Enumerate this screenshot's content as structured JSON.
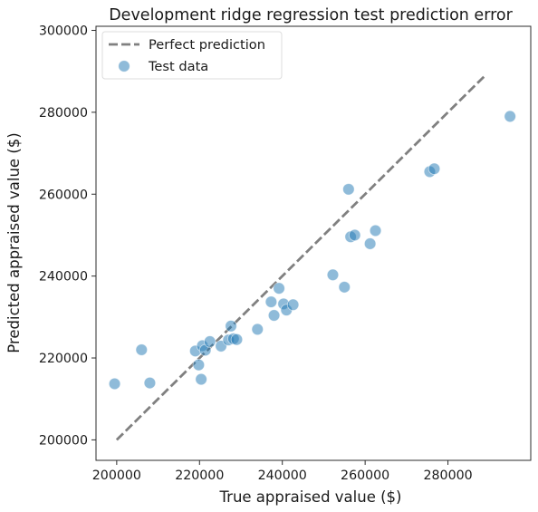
{
  "chart_data": {
    "type": "scatter",
    "title": "Development ridge regression test prediction error",
    "xlabel": "True appraised value ($)",
    "ylabel": "Predicted appraised value ($)",
    "xlim": [
      195000,
      300000
    ],
    "ylim": [
      195000,
      301000
    ],
    "xticks": [
      200000,
      220000,
      240000,
      260000,
      280000
    ],
    "xtick_labels": [
      "200000",
      "220000",
      "240000",
      "260000",
      "280000"
    ],
    "yticks": [
      200000,
      220000,
      240000,
      260000,
      280000,
      300000
    ],
    "ytick_labels": [
      "200000",
      "220000",
      "240000",
      "260000",
      "280000",
      "300000"
    ],
    "grid": false,
    "legend_position": "top-left",
    "reference_line": {
      "name": "Perfect prediction",
      "x": [
        200000,
        289000
      ],
      "y": [
        200000,
        289000
      ],
      "style": "dashed",
      "color": "#808080"
    },
    "series": [
      {
        "name": "Test data",
        "color": "#1f77b4",
        "points": [
          {
            "x": 199500,
            "y": 213700
          },
          {
            "x": 206000,
            "y": 222000
          },
          {
            "x": 208000,
            "y": 213900
          },
          {
            "x": 219000,
            "y": 221700
          },
          {
            "x": 219800,
            "y": 218300
          },
          {
            "x": 220400,
            "y": 214800
          },
          {
            "x": 220700,
            "y": 223000
          },
          {
            "x": 221400,
            "y": 221900
          },
          {
            "x": 222500,
            "y": 224000
          },
          {
            "x": 225200,
            "y": 222900
          },
          {
            "x": 227000,
            "y": 224400
          },
          {
            "x": 227600,
            "y": 227800
          },
          {
            "x": 228200,
            "y": 224700
          },
          {
            "x": 229000,
            "y": 224500
          },
          {
            "x": 234000,
            "y": 227000
          },
          {
            "x": 237300,
            "y": 233700
          },
          {
            "x": 238000,
            "y": 230400
          },
          {
            "x": 239200,
            "y": 237000
          },
          {
            "x": 240300,
            "y": 233200
          },
          {
            "x": 241000,
            "y": 231700
          },
          {
            "x": 242600,
            "y": 233000
          },
          {
            "x": 252200,
            "y": 240300
          },
          {
            "x": 255000,
            "y": 237300
          },
          {
            "x": 256000,
            "y": 261200
          },
          {
            "x": 256500,
            "y": 249600
          },
          {
            "x": 257500,
            "y": 250000
          },
          {
            "x": 261200,
            "y": 247900
          },
          {
            "x": 262500,
            "y": 251100
          },
          {
            "x": 275600,
            "y": 265500
          },
          {
            "x": 276700,
            "y": 266200
          },
          {
            "x": 295000,
            "y": 279000
          }
        ]
      }
    ]
  }
}
